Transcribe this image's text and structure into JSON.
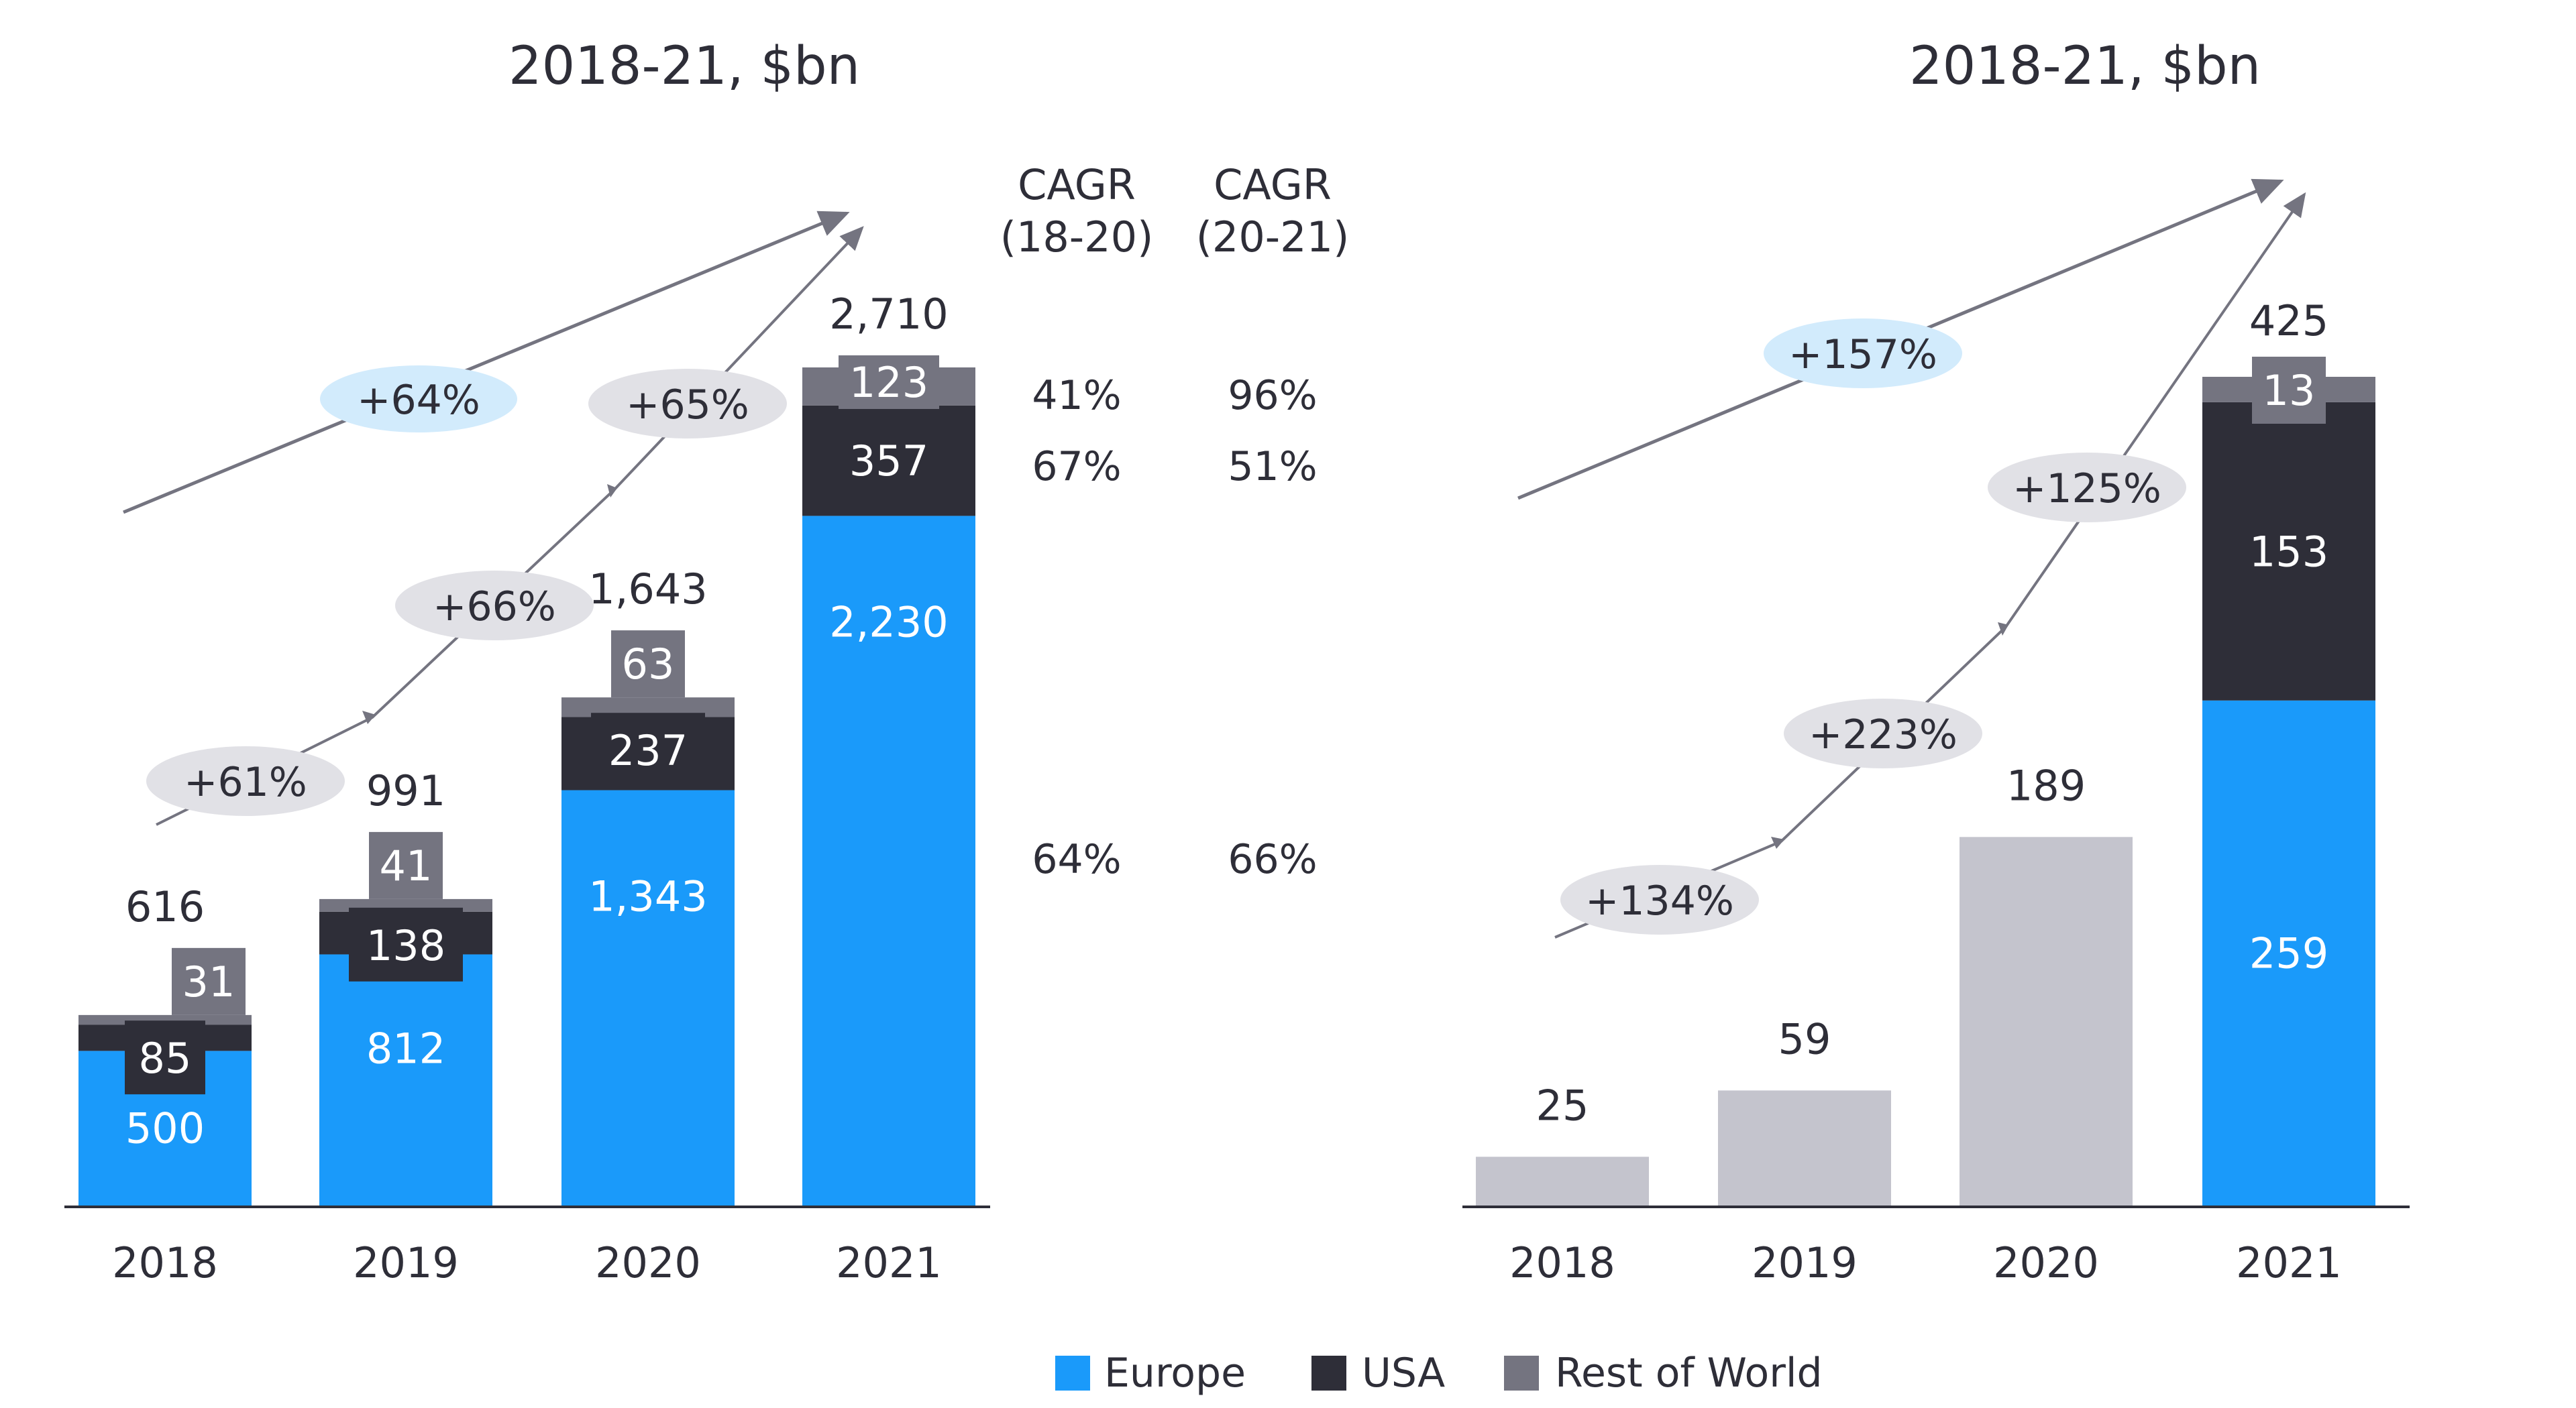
{
  "colors": {
    "europe": "#1a9afa",
    "usa": "#2e2e38",
    "row": "#747480",
    "grey_bar": "#c4c4cd",
    "text": "#2e2e38",
    "bubble_blue": "#d2ebfc",
    "bubble_grey": "#e1e1e6",
    "arrow": "#747480"
  },
  "legend": {
    "items": [
      {
        "label": "Europe",
        "color": "#1a9afa"
      },
      {
        "label": "USA",
        "color": "#2e2e38"
      },
      {
        "label": "Rest of World",
        "color": "#747480"
      }
    ]
  },
  "chart_data": [
    {
      "type": "bar",
      "stacked": true,
      "title": "2018-21, $bn",
      "categories": [
        "2018",
        "2019",
        "2020",
        "2021"
      ],
      "series": [
        {
          "name": "Europe",
          "values": [
            500,
            812,
            1343,
            2230
          ],
          "labels": [
            "500",
            "812",
            "1,343",
            "2,230"
          ]
        },
        {
          "name": "USA",
          "values": [
            85,
            138,
            237,
            357
          ],
          "labels": [
            "85",
            "138",
            "237",
            "357"
          ]
        },
        {
          "name": "Rest of World",
          "values": [
            31,
            41,
            63,
            123
          ],
          "labels": [
            "31",
            "41",
            "63",
            "123"
          ]
        }
      ],
      "totals": [
        616,
        991,
        1643,
        2710
      ],
      "total_labels": [
        "616",
        "991",
        "1,643",
        "2,710"
      ],
      "growth_labels": {
        "yoy": [
          "+61%",
          "+66%",
          "+65%"
        ],
        "overall": "+64%"
      },
      "cagr_table": {
        "headers": [
          "CAGR\n(18-20)",
          "CAGR\n(20-21)"
        ],
        "header_lines": [
          [
            "CAGR",
            "(18-20)"
          ],
          [
            "CAGR",
            "(20-21)"
          ]
        ],
        "rows": [
          {
            "series": "Rest of World",
            "cagr_18_20": "41%",
            "cagr_20_21": "96%"
          },
          {
            "series": "USA",
            "cagr_18_20": "67%",
            "cagr_20_21": "51%"
          },
          {
            "series": "Europe",
            "cagr_18_20": "64%",
            "cagr_20_21": "66%"
          }
        ]
      },
      "ylim": [
        0,
        2710
      ],
      "xlabel": "",
      "ylabel": "",
      "grid": false
    },
    {
      "type": "bar",
      "stacked": true,
      "title": "2018-21, $bn",
      "categories": [
        "2018",
        "2019",
        "2020",
        "2021"
      ],
      "totals": [
        25,
        59,
        189,
        425
      ],
      "total_labels": [
        "25",
        "59",
        "189",
        "425"
      ],
      "unsplit_years": [
        "2018",
        "2019",
        "2020"
      ],
      "series_2021": [
        {
          "name": "Europe",
          "value": 259,
          "label": "259"
        },
        {
          "name": "USA",
          "value": 153,
          "label": "153"
        },
        {
          "name": "Rest of World",
          "value": 13,
          "label": "13"
        }
      ],
      "growth_labels": {
        "yoy": [
          "+134%",
          "+223%",
          "+125%"
        ],
        "overall": "+157%"
      },
      "ylim": [
        0,
        425
      ],
      "xlabel": "",
      "ylabel": "",
      "grid": false
    }
  ]
}
